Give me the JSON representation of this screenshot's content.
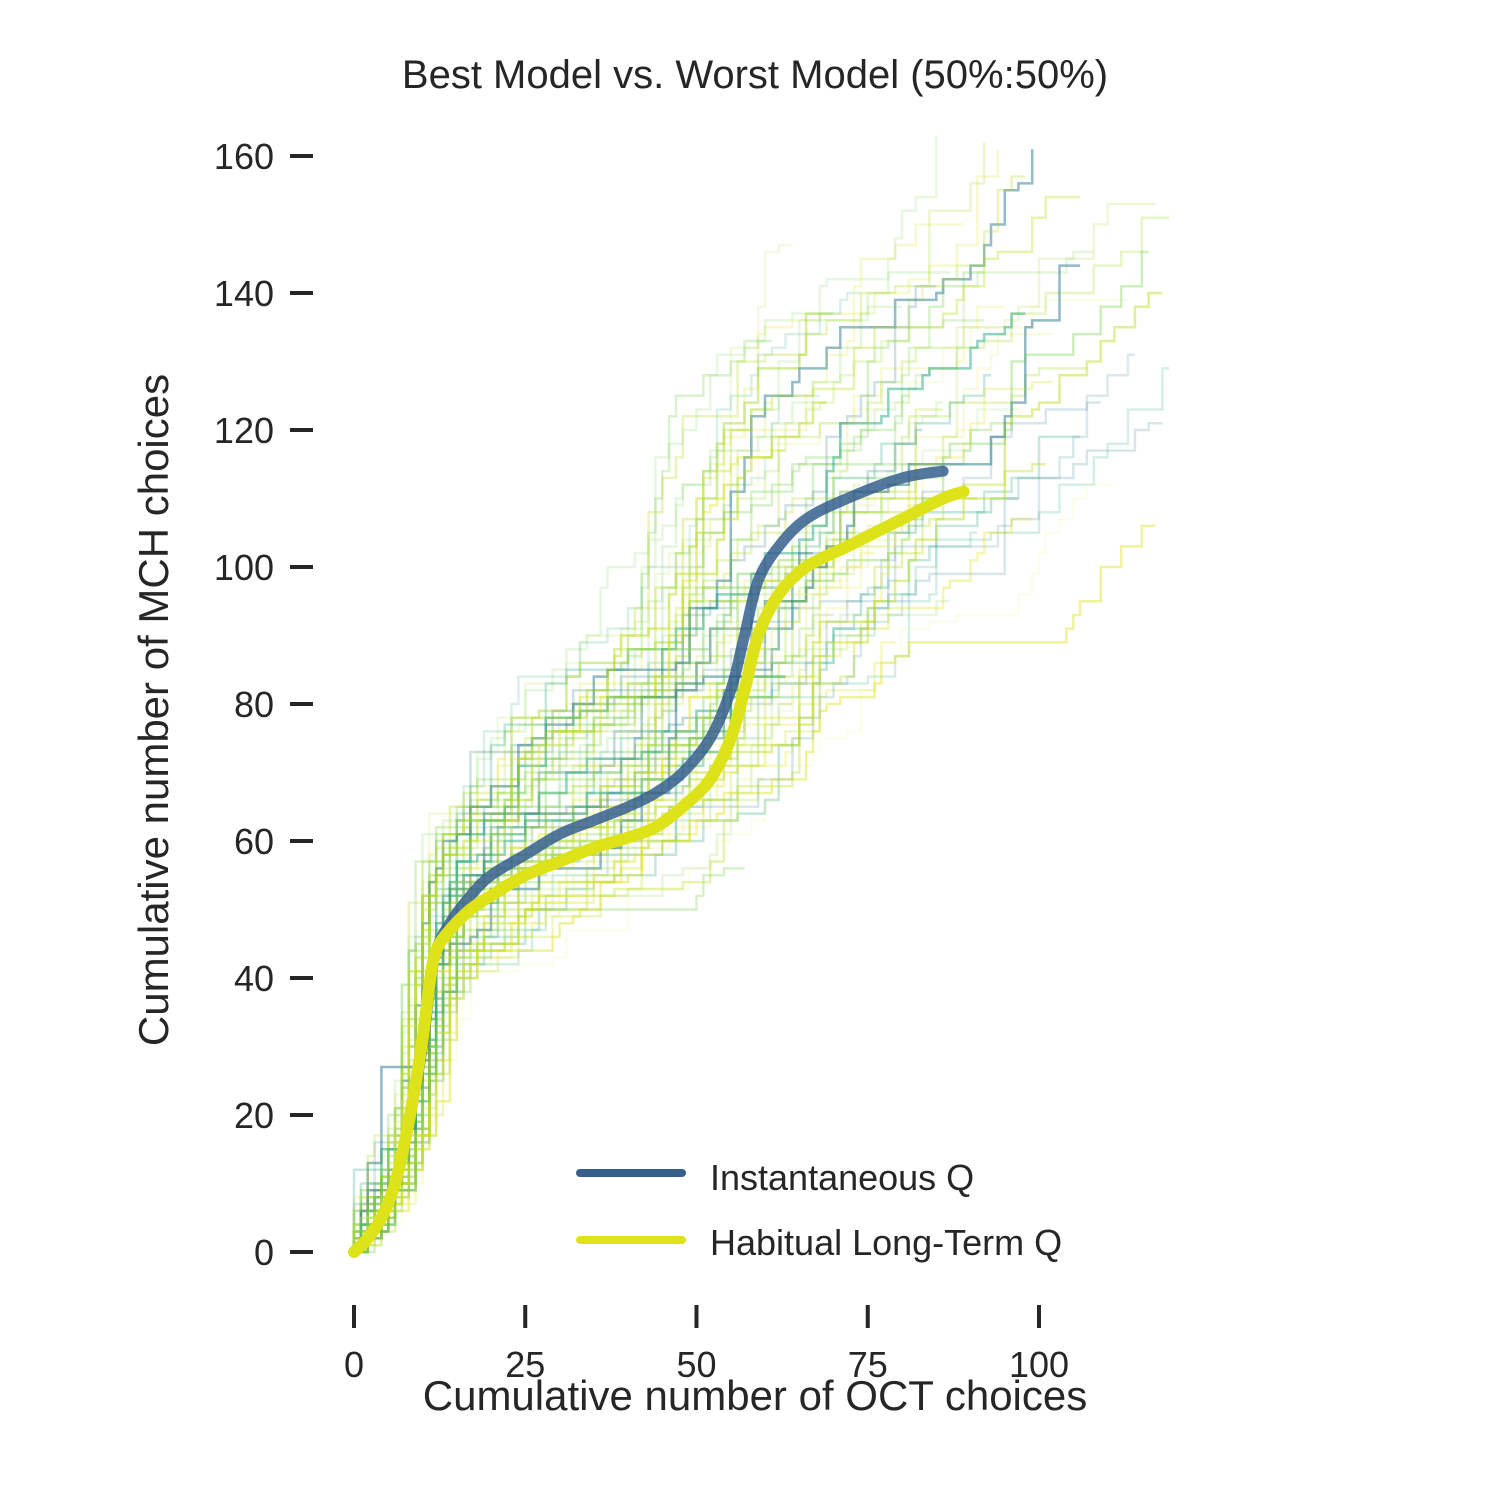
{
  "chart_data": {
    "type": "line",
    "title": "Best Model vs. Worst Model (50%:50%)",
    "xlabel": "Cumulative number of OCT choices",
    "ylabel": "Cumulative number of MCH choices",
    "xlim": [
      -5,
      120
    ],
    "ylim": [
      -5,
      165
    ],
    "x_ticks": [
      0,
      25,
      50,
      75,
      100
    ],
    "y_ticks": [
      0,
      20,
      40,
      60,
      80,
      100,
      120,
      140,
      160
    ],
    "grid": false,
    "legend_position": "lower-right",
    "colors": {
      "instantaneous": "#355f8d",
      "habitual": "#dde318",
      "trace_palette": [
        "#2a788e",
        "#22a884",
        "#7ad151",
        "#a8db34",
        "#bddf26",
        "#dde318",
        "#e8f080"
      ]
    },
    "series": [
      {
        "name": "Instantaneous Q",
        "color": "#355f8d",
        "points": [
          [
            0,
            0
          ],
          [
            2,
            2
          ],
          [
            4,
            5
          ],
          [
            6,
            10
          ],
          [
            8,
            19
          ],
          [
            10,
            30
          ],
          [
            11,
            38
          ],
          [
            12,
            44
          ],
          [
            14,
            48
          ],
          [
            17,
            52
          ],
          [
            20,
            55
          ],
          [
            25,
            58
          ],
          [
            30,
            61
          ],
          [
            35,
            63
          ],
          [
            40,
            65
          ],
          [
            44,
            67
          ],
          [
            48,
            70
          ],
          [
            52,
            75
          ],
          [
            55,
            82
          ],
          [
            57,
            90
          ],
          [
            59,
            98
          ],
          [
            62,
            103
          ],
          [
            66,
            107
          ],
          [
            72,
            110
          ],
          [
            80,
            113
          ],
          [
            86,
            114
          ]
        ]
      },
      {
        "name": "Habitual Long-Term Q",
        "color": "#dde318",
        "points": [
          [
            0,
            0
          ],
          [
            2,
            2
          ],
          [
            4,
            5
          ],
          [
            6,
            10
          ],
          [
            8,
            19
          ],
          [
            10,
            31
          ],
          [
            11,
            39
          ],
          [
            12,
            44
          ],
          [
            14,
            47
          ],
          [
            17,
            50
          ],
          [
            20,
            52
          ],
          [
            25,
            55
          ],
          [
            30,
            57
          ],
          [
            35,
            59
          ],
          [
            40,
            60.5
          ],
          [
            44,
            62
          ],
          [
            48,
            65
          ],
          [
            52,
            69
          ],
          [
            55,
            75
          ],
          [
            57,
            82
          ],
          [
            59,
            90
          ],
          [
            62,
            96
          ],
          [
            66,
            100
          ],
          [
            72,
            103
          ],
          [
            80,
            107
          ],
          [
            86,
            110
          ],
          [
            89,
            111
          ]
        ]
      }
    ]
  }
}
